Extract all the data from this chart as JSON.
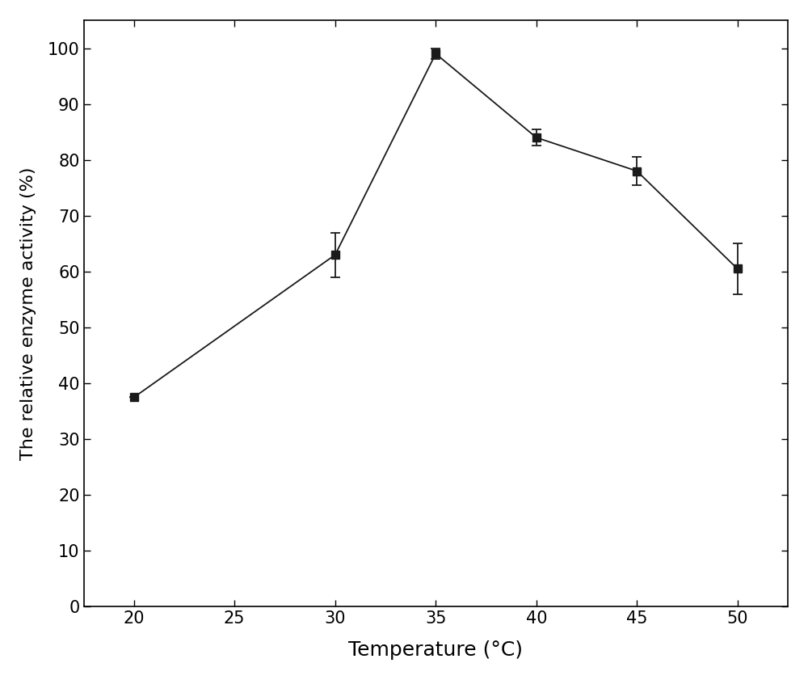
{
  "x": [
    20,
    30,
    35,
    40,
    45,
    50
  ],
  "y": [
    37.5,
    63.0,
    99.0,
    84.0,
    78.0,
    60.5
  ],
  "yerr": [
    0.0,
    4.0,
    1.0,
    1.5,
    2.5,
    4.5
  ],
  "xlabel": "Temperature (°C)",
  "ylabel": "The relative enzyme activity (%)",
  "xlim": [
    17.5,
    52.5
  ],
  "ylim": [
    0,
    105
  ],
  "xticks": [
    20,
    25,
    30,
    35,
    40,
    45,
    50
  ],
  "yticks": [
    0,
    10,
    20,
    30,
    40,
    50,
    60,
    70,
    80,
    90,
    100
  ],
  "line_color": "#1a1a1a",
  "marker_color": "#1a1a1a",
  "marker": "s",
  "marker_size": 7,
  "line_width": 1.3,
  "capsize": 4,
  "xlabel_fontsize": 18,
  "ylabel_fontsize": 16,
  "tick_fontsize": 15,
  "background_color": "#ffffff"
}
